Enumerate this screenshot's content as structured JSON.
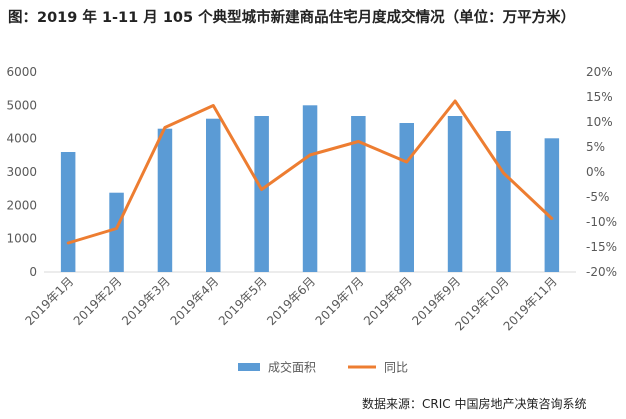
{
  "title": "图：2019 年 1-11 月 105 个典型城市新建商品住宅月度成交情况（单位：万平方米）",
  "source": "数据来源：CRIC 中国房地产决策咨询系统",
  "colors": {
    "bar": "#5b9bd5",
    "line": "#ed7d31",
    "axis": "#d9d9d9",
    "text": "#595959"
  },
  "chart_data": {
    "type": "bar",
    "title": "图：2019 年 1-11 月 105 个典型城市新建商品住宅月度成交情况（单位：万平方米）",
    "categories": [
      "2019年1月",
      "2019年2月",
      "2019年3月",
      "2019年4月",
      "2019年5月",
      "2019年6月",
      "2019年7月",
      "2019年8月",
      "2019年9月",
      "2019年10月",
      "2019年11月"
    ],
    "series": [
      {
        "name": "成交面积",
        "type": "bar",
        "axis": "left",
        "values": [
          3600,
          2380,
          4300,
          4600,
          4680,
          5000,
          4680,
          4470,
          4680,
          4230,
          4010
        ]
      },
      {
        "name": "同比",
        "type": "line",
        "axis": "right",
        "unit": "%",
        "values": [
          -14.2,
          -11.3,
          8.9,
          13.3,
          -3.5,
          3.4,
          6.1,
          2.0,
          14.2,
          -0.2,
          -9.3
        ]
      }
    ],
    "y_left": {
      "min": 0,
      "max": 6000,
      "ticks": [
        "0",
        "1000",
        "2000",
        "3000",
        "4000",
        "5000",
        "6000"
      ]
    },
    "y_right": {
      "min": -20,
      "max": 20,
      "ticks": [
        "-20%",
        "-15%",
        "-10%",
        "-5%",
        "0%",
        "5%",
        "10%",
        "15%",
        "20%"
      ]
    },
    "grid": false,
    "legend": "bottom"
  }
}
